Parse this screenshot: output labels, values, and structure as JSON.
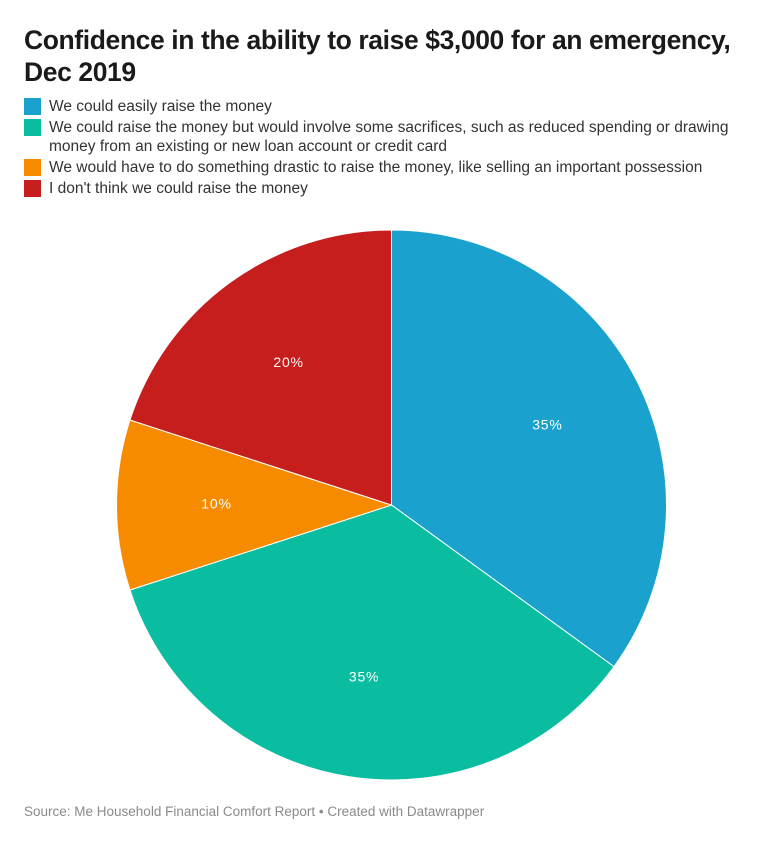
{
  "source": "Source: Me Household Financial Comfort Report • Created with Datawrapper",
  "chart_data": {
    "type": "pie",
    "title": "Confidence in the ability to raise $3,000 for an emergency, Dec 2019",
    "legend_position": "top",
    "start_angle_deg": 0,
    "direction": "clockwise",
    "slices": [
      {
        "label": "We could easily raise the money",
        "value": 35,
        "display": "35%",
        "color": "#1ba1ce"
      },
      {
        "label": "We could raise the money but would involve some sacrifices, such as reduced spending or drawing money from an existing or new loan account or credit card",
        "value": 35,
        "display": "35%",
        "color": "#0abda0"
      },
      {
        "label": "We would have to do something drastic to raise the money, like selling an important possession",
        "value": 10,
        "display": "10%",
        "color": "#f78b00"
      },
      {
        "label": "I don't think we could raise the money",
        "value": 20,
        "display": "20%",
        "color": "#c61d1d"
      }
    ]
  }
}
